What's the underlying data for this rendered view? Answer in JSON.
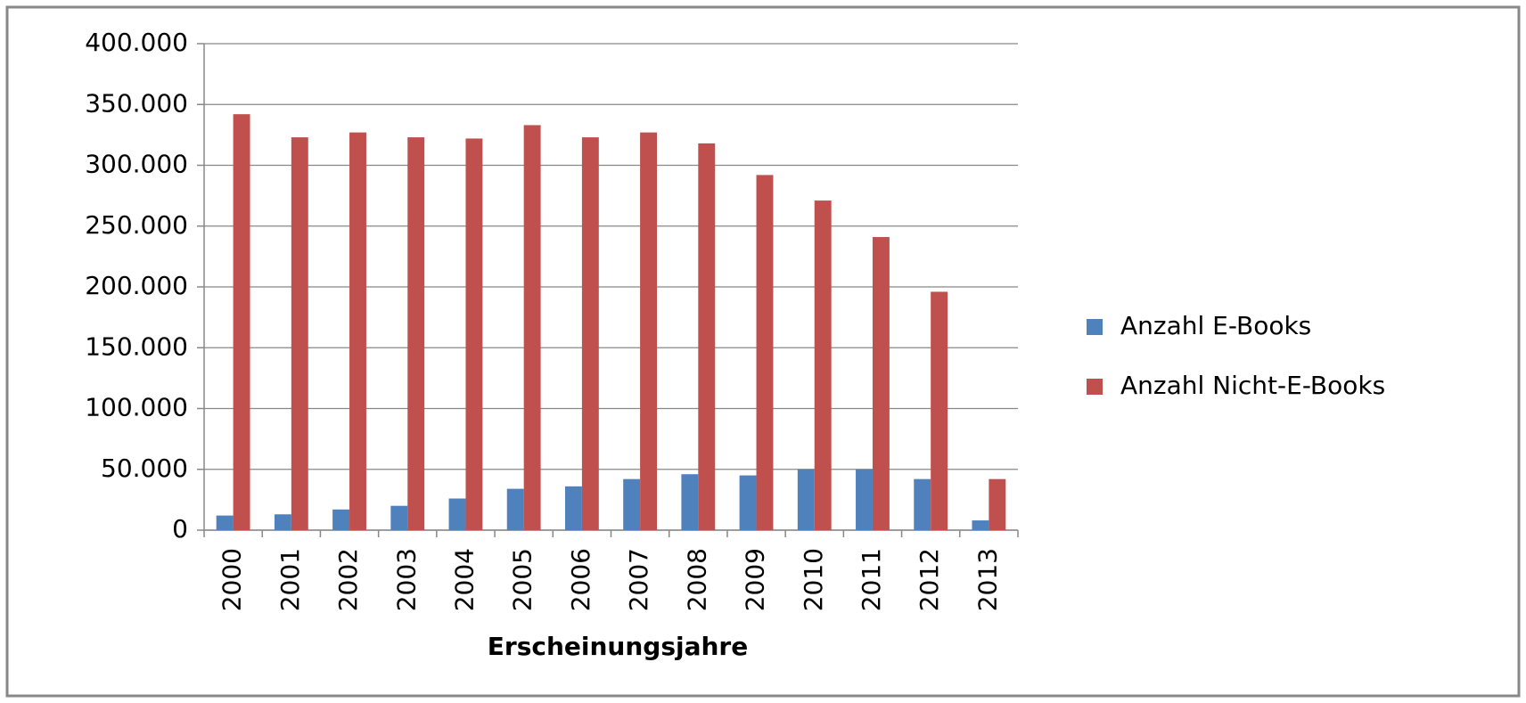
{
  "chart_data": {
    "type": "bar",
    "x_label": "Erscheinungsjahre",
    "categories": [
      "2000",
      "2001",
      "2002",
      "2003",
      "2004",
      "2005",
      "2006",
      "2007",
      "2008",
      "2009",
      "2010",
      "2011",
      "2012",
      "2013"
    ],
    "series": [
      {
        "name": "Anzahl E-Books",
        "color": "#4f81bd",
        "values": [
          12000,
          13000,
          17000,
          20000,
          26000,
          34000,
          36000,
          42000,
          46000,
          45000,
          50000,
          50000,
          42000,
          8000
        ]
      },
      {
        "name": "Anzahl Nicht-E-Books",
        "color": "#c0504d",
        "values": [
          342000,
          323000,
          327000,
          323000,
          322000,
          333000,
          323000,
          327000,
          318000,
          292000,
          271000,
          241000,
          196000,
          42000
        ]
      }
    ],
    "ylim": [
      0,
      400000
    ],
    "yticks": [
      0,
      {
        "value": 50000,
        "label": "50.000"
      },
      {
        "value": 100000,
        "label": "100.000"
      },
      {
        "value": 150000,
        "label": "150.000"
      },
      {
        "value": 200000,
        "label": "200.000"
      },
      {
        "value": 250000,
        "label": "250.000"
      },
      {
        "value": 300000,
        "label": "300.000"
      },
      {
        "value": 350000,
        "label": "350.000"
      },
      {
        "value": 400000,
        "label": "400.000"
      }
    ],
    "grid": true,
    "legend": "right"
  }
}
